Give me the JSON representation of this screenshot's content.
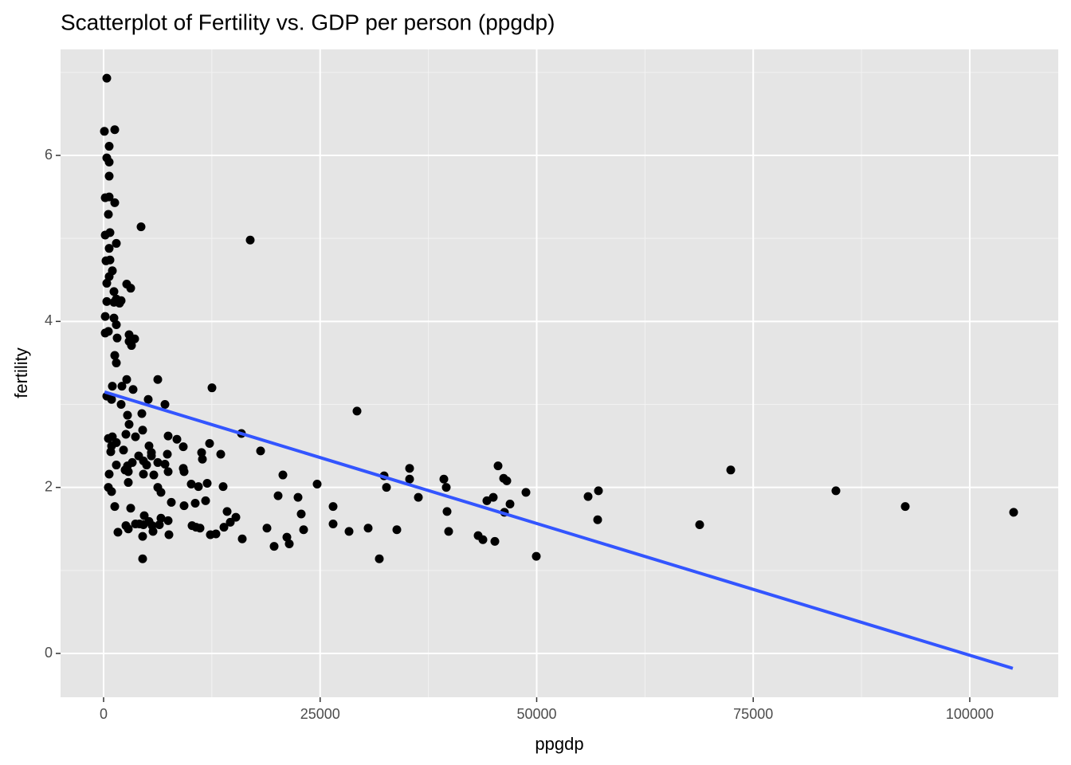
{
  "chart_data": {
    "type": "scatter",
    "title": "Scatterplot of Fertility vs. GDP per person (ppgdp)",
    "xlabel": "ppgdp",
    "ylabel": "fertility",
    "xlim": [
      -4968,
      110216
    ],
    "ylim": [
      -0.528,
      7.277
    ],
    "xticks": [
      0,
      25000,
      50000,
      75000,
      100000
    ],
    "yticks": [
      0,
      2,
      4,
      6
    ],
    "xminor": [
      12500,
      37500,
      62500,
      87500
    ],
    "yminor": [
      1,
      3,
      5,
      7
    ],
    "grid": true,
    "series": [
      {
        "mode": "points",
        "color": "#000000",
        "x": [
          368,
          92,
          1288,
          644,
          368,
          644,
          644,
          184,
          644,
          1288,
          552,
          4324,
          736,
          184,
          1472,
          16928,
          644,
          276,
          736,
          1012,
          644,
          368,
          2668,
          3128,
          1196,
          368,
          1472,
          2024,
          1196,
          1840,
          184,
          1196,
          1472,
          184,
          552,
          2944,
          1564,
          2944,
          3588,
          3220,
          1288,
          1472,
          2668,
          6256,
          12512,
          1012,
          2116,
          3404,
          368,
          920,
          5152,
          2024,
          7084,
          29256,
          4416,
          2760,
          2944,
          4508,
          2576,
          15916,
          7452,
          552,
          1012,
          3680,
          8464,
          1472,
          12236,
          920,
          5244,
          9200,
          18124,
          828,
          2300,
          5520,
          11316,
          7360,
          13524,
          4048,
          5520,
          4600,
          3312,
          6256,
          11408,
          4968,
          1472,
          2760,
          7084,
          9200,
          2484,
          35328,
          45540,
          72404,
          2852,
          7452,
          20700,
          644,
          4600,
          5796,
          9292,
          32384,
          35328,
          39284,
          46184,
          46552,
          2852,
          11960,
          24656,
          10120,
          552,
          6256,
          10948,
          13800,
          32660,
          39560,
          920,
          6624,
          57132,
          84548,
          48760,
          20148,
          22448,
          36340,
          44988,
          55936,
          44252,
          7820,
          10580,
          11776,
          46920,
          1288,
          9292,
          26496,
          92552,
          3128,
          14260,
          39652,
          46276,
          105064,
          4692,
          22816,
          15272,
          6624,
          57040,
          7452,
          5244,
          14628,
          3680,
          4140,
          4600,
          5612,
          6440,
          2576,
          10212,
          26496,
          68816,
          2852,
          10672,
          11132,
          13892,
          18860,
          30544,
          5704,
          23092,
          33856,
          39836,
          1656,
          28336,
          12328,
          12972,
          7544,
          43240,
          4508,
          21160,
          43792,
          16008,
          45172,
          21436,
          19688,
          49956,
          4508,
          31832
        ],
        "values": [
          6.93,
          6.29,
          6.31,
          6.11,
          5.97,
          5.92,
          5.75,
          5.49,
          5.5,
          5.43,
          5.29,
          5.14,
          5.07,
          5.04,
          4.94,
          4.98,
          4.88,
          4.73,
          4.74,
          4.61,
          4.54,
          4.46,
          4.45,
          4.4,
          4.36,
          4.24,
          4.27,
          4.25,
          4.23,
          4.22,
          4.06,
          4.04,
          3.96,
          3.86,
          3.88,
          3.84,
          3.8,
          3.76,
          3.79,
          3.71,
          3.59,
          3.5,
          3.3,
          3.3,
          3.2,
          3.22,
          3.22,
          3.18,
          3.1,
          3.06,
          3.06,
          3.0,
          3.0,
          2.92,
          2.89,
          2.87,
          2.76,
          2.69,
          2.64,
          2.65,
          2.62,
          2.59,
          2.61,
          2.61,
          2.58,
          2.54,
          2.53,
          2.5,
          2.5,
          2.49,
          2.44,
          2.43,
          2.45,
          2.42,
          2.42,
          2.4,
          2.4,
          2.38,
          2.38,
          2.32,
          2.3,
          2.3,
          2.34,
          2.27,
          2.27,
          2.26,
          2.28,
          2.23,
          2.21,
          2.23,
          2.26,
          2.21,
          2.19,
          2.19,
          2.15,
          2.16,
          2.16,
          2.15,
          2.19,
          2.14,
          2.1,
          2.1,
          2.11,
          2.08,
          2.06,
          2.05,
          2.04,
          2.04,
          2.0,
          2.0,
          2.01,
          2.01,
          2.0,
          2.0,
          1.95,
          1.94,
          1.96,
          1.96,
          1.94,
          1.9,
          1.88,
          1.88,
          1.88,
          1.89,
          1.84,
          1.82,
          1.81,
          1.84,
          1.8,
          1.77,
          1.78,
          1.77,
          1.77,
          1.75,
          1.71,
          1.71,
          1.7,
          1.7,
          1.66,
          1.68,
          1.64,
          1.63,
          1.61,
          1.6,
          1.59,
          1.58,
          1.56,
          1.56,
          1.55,
          1.54,
          1.55,
          1.54,
          1.54,
          1.56,
          1.55,
          1.5,
          1.52,
          1.51,
          1.52,
          1.51,
          1.51,
          1.47,
          1.49,
          1.49,
          1.47,
          1.46,
          1.47,
          1.43,
          1.44,
          1.43,
          1.42,
          1.41,
          1.4,
          1.37,
          1.38,
          1.35,
          1.32,
          1.29,
          1.17,
          1.14,
          1.14
        ]
      },
      {
        "mode": "line",
        "color": "#3355ff",
        "x": [
          115,
          104968
        ],
        "values": [
          3.15,
          -0.18
        ]
      }
    ]
  }
}
